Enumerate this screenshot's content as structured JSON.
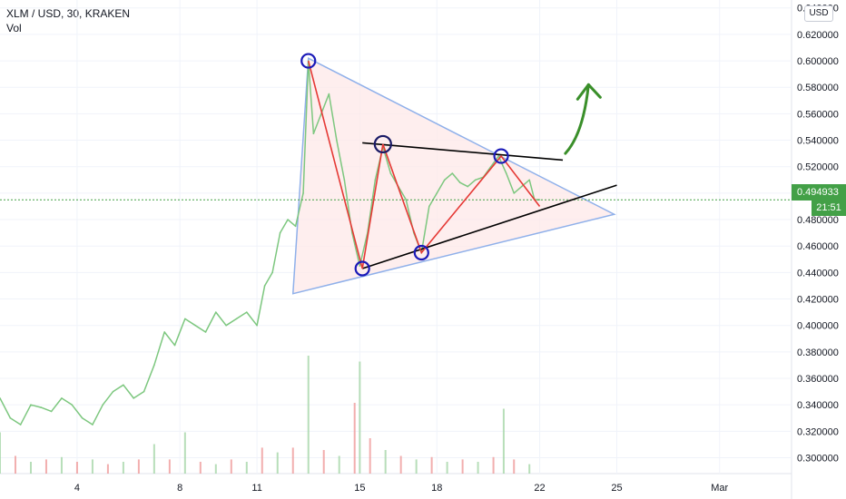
{
  "header": {
    "symbol_line": "XLM / USD, 30, KRAKEN",
    "indicator": "Vol"
  },
  "currency_label": "USD",
  "last_price_tag": "0.494933",
  "countdown": "21:51",
  "colors": {
    "price_line": "#7dc77f",
    "triangle": "#8fb0ea",
    "triangle_fill": "#fde8e8",
    "zigzag": "#e53935",
    "trend": "#000000",
    "marker": "#1a1ab8",
    "arrow": "#3a8f2a",
    "tag": "#43a047",
    "vol_up": "#a5d6a7",
    "vol_down": "#ef9a9a"
  },
  "chart_data": {
    "type": "line",
    "title": "XLM / USD, 30, KRAKEN",
    "xlabel": "",
    "ylabel": "",
    "x_tick_labels": [
      "4",
      "8",
      "11",
      "15",
      "18",
      "22",
      "25",
      "Mar"
    ],
    "x_tick_days": [
      4,
      8,
      11,
      15,
      18,
      22,
      25,
      29
    ],
    "y_tick_labels": [
      "0.300000",
      "0.320000",
      "0.340000",
      "0.360000",
      "0.380000",
      "0.400000",
      "0.420000",
      "0.440000",
      "0.460000",
      "0.480000",
      "0.500000",
      "0.520000",
      "0.540000",
      "0.560000",
      "0.580000",
      "0.600000",
      "0.620000",
      "0.640000"
    ],
    "ylim": [
      0.288,
      0.646
    ],
    "xlim": [
      1.0,
      31.8
    ],
    "grid": true,
    "series": [
      {
        "x": [
          1.0,
          1.4,
          1.8,
          2.2,
          2.6,
          3.0,
          3.4,
          3.8,
          4.2,
          4.6,
          5.0,
          5.4,
          5.8,
          6.2,
          6.6,
          7.0,
          7.4,
          7.8,
          8.2,
          8.6,
          9.0,
          9.4,
          9.8,
          10.2,
          10.6,
          11.0,
          11.3,
          11.6,
          11.9,
          12.2,
          12.5,
          12.8,
          13.0,
          13.2,
          13.5,
          13.8,
          14.1,
          14.4,
          14.7,
          15.0,
          15.3,
          15.6,
          15.9,
          16.2,
          16.5,
          16.8,
          17.1,
          17.4,
          17.7,
          18.0,
          18.3,
          18.6,
          18.9,
          19.2,
          19.5,
          19.8,
          20.1,
          20.4,
          20.7,
          21.0,
          21.3,
          21.6,
          21.8,
          22.0
        ],
        "values": [
          0.345,
          0.33,
          0.325,
          0.34,
          0.338,
          0.335,
          0.345,
          0.34,
          0.33,
          0.325,
          0.34,
          0.35,
          0.355,
          0.345,
          0.35,
          0.37,
          0.395,
          0.385,
          0.405,
          0.4,
          0.395,
          0.41,
          0.4,
          0.405,
          0.41,
          0.4,
          0.43,
          0.44,
          0.47,
          0.48,
          0.475,
          0.5,
          0.6,
          0.545,
          0.56,
          0.575,
          0.54,
          0.51,
          0.47,
          0.445,
          0.47,
          0.51,
          0.535,
          0.515,
          0.505,
          0.495,
          0.47,
          0.455,
          0.49,
          0.5,
          0.51,
          0.515,
          0.508,
          0.505,
          0.51,
          0.512,
          0.52,
          0.528,
          0.515,
          0.5,
          0.505,
          0.51,
          0.495,
          0.495
        ]
      }
    ],
    "volume": {
      "x": [
        1.0,
        1.6,
        2.2,
        2.8,
        3.4,
        4.0,
        4.6,
        5.2,
        5.8,
        6.4,
        7.0,
        7.6,
        8.2,
        8.8,
        9.4,
        10.0,
        10.6,
        11.2,
        11.8,
        12.4,
        13.0,
        13.6,
        14.2,
        14.8,
        15.0,
        15.4,
        16.0,
        16.6,
        17.2,
        17.8,
        18.4,
        19.0,
        19.6,
        20.2,
        20.6,
        21.0,
        21.6
      ],
      "values": [
        35,
        15,
        10,
        12,
        14,
        10,
        12,
        8,
        10,
        12,
        25,
        12,
        35,
        10,
        8,
        12,
        10,
        22,
        18,
        22,
        100,
        20,
        15,
        60,
        95,
        30,
        20,
        15,
        12,
        14,
        10,
        12,
        10,
        14,
        55,
        12,
        8
      ]
    },
    "annotations": {
      "triangle_days": [
        12.4,
        13.0,
        24.9
      ],
      "triangle_prices": [
        0.424,
        0.602,
        0.484
      ],
      "zigzag_days": [
        13.0,
        15.1,
        15.9,
        17.4,
        20.5,
        22.0
      ],
      "zigzag_prices": [
        0.6,
        0.443,
        0.537,
        0.455,
        0.528,
        0.49
      ],
      "pivot_days": [
        13.0,
        15.1,
        15.9,
        17.4,
        20.5
      ],
      "pivot_prices": [
        0.6,
        0.443,
        0.537,
        0.455,
        0.528
      ],
      "resistance_days": [
        15.1,
        22.9
      ],
      "resistance_prices": [
        0.538,
        0.525
      ],
      "support_days": [
        15.1,
        25.0
      ],
      "support_prices": [
        0.443,
        0.506
      ],
      "arrow_days": [
        23.0,
        23.7,
        23.9
      ],
      "arrow_prices": [
        0.53,
        0.545,
        0.582
      ]
    }
  }
}
